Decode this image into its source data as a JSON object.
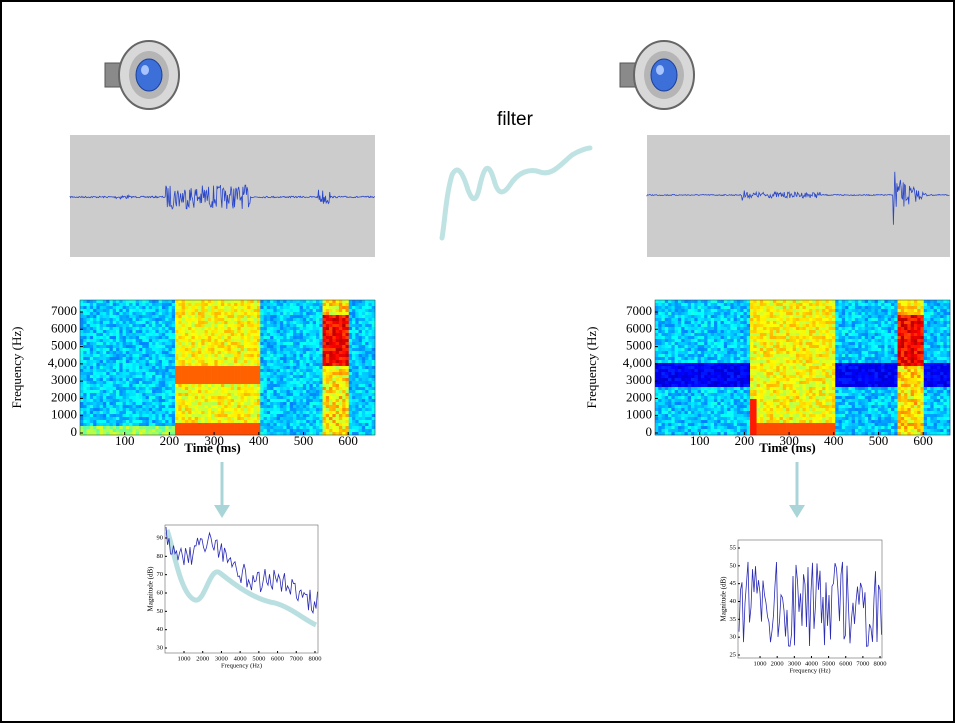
{
  "filter_label": "filter",
  "left": {
    "spectrogram": {
      "xlabel": "Time (ms)",
      "ylabel": "Frequency (Hz)",
      "xticks": [
        100,
        200,
        300,
        400,
        500,
        600
      ],
      "yticks": [
        0,
        1000,
        2000,
        3000,
        {
          "value": 4000,
          "label": "4,000"
        },
        5000,
        6000,
        7000
      ]
    },
    "spectrum": {
      "xlabel": "Frequency (Hz)",
      "ylabel": "Magnitude (dB)",
      "xticks": [
        1000,
        2000,
        3000,
        4000,
        5000,
        6000,
        7000,
        8000
      ],
      "yticks": [
        30,
        40,
        50,
        60,
        70,
        80,
        90
      ]
    }
  },
  "right": {
    "spectrogram": {
      "xlabel": "Time (ms)",
      "ylabel": "Frequency (Hz)",
      "xticks": [
        100,
        200,
        300,
        400,
        500,
        600
      ],
      "yticks": [
        0,
        1000,
        2000,
        3000,
        {
          "value": 4000,
          "label": "4,000"
        },
        5000,
        6000,
        7000
      ]
    },
    "spectrum": {
      "xlabel": "Frequency (Hz)",
      "ylabel": "Magnitude (dB)",
      "xticks": [
        1000,
        2000,
        3000,
        4000,
        5000,
        6000,
        7000,
        8000
      ],
      "yticks": [
        25,
        30,
        35,
        40,
        45,
        50,
        55
      ]
    }
  }
}
